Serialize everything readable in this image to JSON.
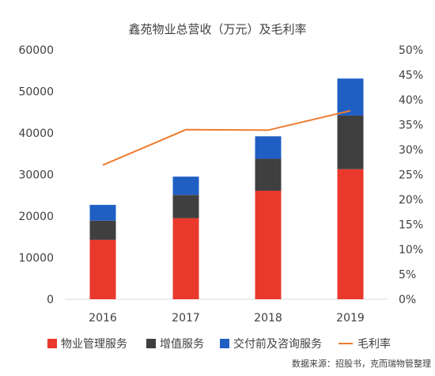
{
  "chart_data": {
    "type": "bar",
    "title": "鑫苑物业总营收（万元）及毛利率",
    "categories": [
      "2016",
      "2017",
      "2018",
      "2019"
    ],
    "series": [
      {
        "name": "物业管理服务",
        "type": "bar",
        "stack": "total",
        "color": "#E8392C",
        "values": [
          14300,
          19500,
          26100,
          31300
        ]
      },
      {
        "name": "增值服务",
        "type": "bar",
        "stack": "total",
        "color": "#3F3F3F",
        "values": [
          4600,
          5600,
          7700,
          12900
        ]
      },
      {
        "name": "交付前及咨询服务",
        "type": "bar",
        "stack": "total",
        "color": "#1F5FC4",
        "values": [
          3800,
          4400,
          5400,
          8900
        ]
      },
      {
        "name": "毛利率",
        "type": "line",
        "axis": "right",
        "color": "#ED7D31",
        "values": [
          26.9,
          34.0,
          33.9,
          37.8
        ]
      }
    ],
    "y_left": {
      "min": 0,
      "max": 60000,
      "ticks": [
        "0",
        "10000",
        "20000",
        "30000",
        "40000",
        "50000",
        "60000"
      ]
    },
    "y_right": {
      "min": 0,
      "max": 50,
      "ticks": [
        "0%",
        "5%",
        "10%",
        "15%",
        "20%",
        "25%",
        "30%",
        "35%",
        "40%",
        "45%",
        "50%"
      ]
    },
    "legend": "bottom",
    "grid": false,
    "source_note": "数据来源：招股书，克而瑞物管整理"
  }
}
